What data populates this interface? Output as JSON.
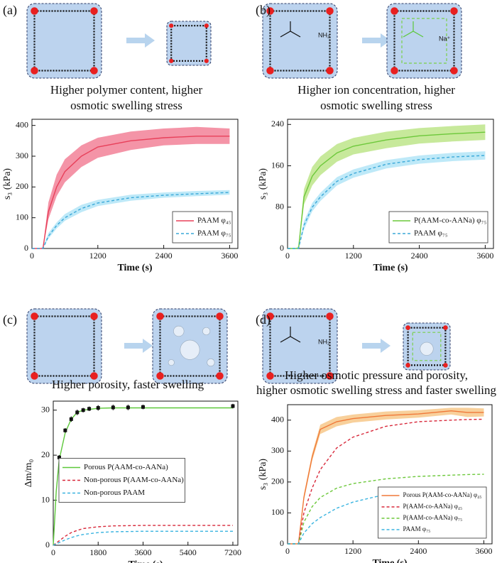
{
  "chart_data": [
    {
      "type": "line",
      "panel_label": "(a)",
      "caption": [
        "Higher polymer content, higher",
        "osmotic swelling stress"
      ],
      "xlabel": "Time (s)",
      "ylabel": "s₃ (kPa)",
      "xlim": [
        0,
        3750
      ],
      "ylim": [
        0,
        420
      ],
      "xticks": [
        0,
        1200,
        2400,
        3600
      ],
      "yticks": [
        0,
        100,
        200,
        300,
        400
      ],
      "legend": "lower right",
      "x": [
        0,
        150,
        200,
        300,
        450,
        600,
        900,
        1200,
        1800,
        2400,
        3000,
        3600
      ],
      "series": [
        {
          "name": "PAAM φ₄₅",
          "color": "#e8405a",
          "band_color": "#f0708a",
          "dashed": false,
          "values": [
            0,
            0,
            0,
            120,
            200,
            250,
            300,
            330,
            350,
            360,
            365,
            365
          ],
          "upper": [
            0,
            0,
            5,
            150,
            240,
            290,
            335,
            360,
            380,
            390,
            395,
            390
          ],
          "lower": [
            0,
            0,
            0,
            95,
            170,
            215,
            265,
            295,
            320,
            335,
            340,
            340
          ]
        },
        {
          "name": "PAAM φ₇₅",
          "color": "#3aa8d8",
          "band_color": "#a8e2f5",
          "dashed": true,
          "values": [
            0,
            0,
            0,
            40,
            75,
            100,
            130,
            148,
            165,
            173,
            178,
            182
          ],
          "upper": [
            0,
            0,
            5,
            50,
            85,
            112,
            142,
            158,
            175,
            182,
            187,
            190
          ],
          "lower": [
            0,
            0,
            0,
            32,
            65,
            90,
            118,
            138,
            155,
            165,
            170,
            175
          ]
        }
      ]
    },
    {
      "type": "line",
      "panel_label": "(b)",
      "caption": [
        "Higher ion concentration, higher",
        "osmotic swelling stress"
      ],
      "annotations": [
        "NH₂",
        "Na⁺"
      ],
      "xlabel": "Time (s)",
      "ylabel": "s₃ (kPa)",
      "xlim": [
        0,
        3750
      ],
      "ylim": [
        0,
        250
      ],
      "xticks": [
        0,
        1200,
        2400,
        3600
      ],
      "yticks": [
        0,
        80,
        160,
        240
      ],
      "legend": "lower right",
      "x": [
        0,
        150,
        200,
        300,
        450,
        600,
        900,
        1200,
        1800,
        2400,
        3000,
        3600
      ],
      "series": [
        {
          "name": "P(AAM-co-AANa) φ₇₅",
          "color": "#6cc83a",
          "band_color": "#b4e27a",
          "dashed": false,
          "values": [
            0,
            0,
            0,
            100,
            140,
            160,
            185,
            198,
            210,
            218,
            222,
            225
          ],
          "upper": [
            0,
            0,
            5,
            115,
            158,
            178,
            202,
            214,
            226,
            233,
            237,
            240
          ],
          "lower": [
            0,
            0,
            0,
            85,
            122,
            142,
            168,
            182,
            194,
            203,
            207,
            210
          ]
        },
        {
          "name": "PAAM φ₇₅",
          "color": "#3aa8d8",
          "band_color": "#a8e2f5",
          "dashed": true,
          "values": [
            0,
            0,
            0,
            45,
            80,
            100,
            130,
            145,
            163,
            172,
            177,
            180
          ],
          "upper": [
            0,
            0,
            4,
            53,
            88,
            108,
            138,
            153,
            171,
            180,
            185,
            188
          ],
          "lower": [
            0,
            0,
            0,
            37,
            72,
            92,
            122,
            137,
            155,
            164,
            169,
            172
          ]
        }
      ]
    },
    {
      "type": "line",
      "panel_label": "(c)",
      "caption": [
        "Higher porosity, faster swelling"
      ],
      "xlabel": "Time (s)",
      "ylabel": "Δm/m₀",
      "xlim": [
        0,
        7400
      ],
      "ylim": [
        0,
        32
      ],
      "xticks": [
        0,
        1800,
        3600,
        5400,
        7200
      ],
      "yticks": [
        0,
        10,
        20,
        30
      ],
      "legend": "center left",
      "x": [
        0,
        120,
        240,
        480,
        720,
        960,
        1200,
        1800,
        2400,
        3600,
        5400,
        7200
      ],
      "series": [
        {
          "name": "Porous P(AAM-co-AANa)",
          "color": "#5cc83a",
          "dashed": false,
          "values": [
            0,
            12,
            19,
            25,
            28,
            29.5,
            30,
            30.4,
            30.5,
            30.5,
            30.5,
            30.5
          ]
        },
        {
          "name": "Non-porous P(AAM-co-AANa)",
          "color": "#d8283a",
          "dashed": true,
          "values": [
            0,
            0.5,
            1,
            2,
            2.8,
            3.3,
            3.7,
            4.1,
            4.3,
            4.4,
            4.4,
            4.4
          ]
        },
        {
          "name": "Non-porous PAAM",
          "color": "#3ab4e0",
          "dashed": true,
          "values": [
            0,
            0.3,
            0.6,
            1.2,
            1.7,
            2.1,
            2.4,
            2.8,
            3,
            3.1,
            3.1,
            3.1
          ]
        }
      ],
      "points": {
        "color": "#111111",
        "x": [
          240,
          480,
          720,
          960,
          1200,
          1440,
          1800,
          2400,
          3000,
          3600,
          7200
        ],
        "values": [
          19.5,
          25.5,
          28,
          29.5,
          30,
          30.3,
          30.5,
          30.6,
          30.6,
          30.7,
          30.9
        ],
        "errors": [
          0.5,
          0.5,
          0.6,
          0.6,
          0.5,
          0.5,
          0.6,
          0.6,
          0.6,
          0.5,
          0.5
        ]
      }
    },
    {
      "type": "line",
      "panel_label": "(d)",
      "caption": [
        "Higher osmotic pressure and porosity,",
        "higher osmotic swelling stress and faster swelling"
      ],
      "annotations": [
        "NH₂"
      ],
      "xlabel": "Time (s)",
      "ylabel": "s₃ (kPa)",
      "xlim": [
        0,
        3750
      ],
      "ylim": [
        0,
        450
      ],
      "xticks": [
        0,
        1200,
        2400,
        3600
      ],
      "yticks": [
        0,
        100,
        200,
        300,
        400
      ],
      "legend": "lower right",
      "x": [
        0,
        150,
        200,
        300,
        450,
        600,
        900,
        1200,
        1800,
        2400,
        3000,
        3300,
        3600
      ],
      "series": [
        {
          "name": "Porous P(AAM-co-AANa) φ₄₅",
          "color": "#f07838",
          "band_color": "#f5c07a",
          "dashed": false,
          "values": [
            0,
            0,
            0,
            150,
            280,
            370,
            395,
            405,
            415,
            420,
            430,
            425,
            425
          ],
          "upper": [
            0,
            0,
            3,
            160,
            292,
            385,
            410,
            418,
            428,
            432,
            440,
            440,
            438
          ],
          "lower": [
            0,
            0,
            0,
            140,
            268,
            355,
            380,
            392,
            402,
            408,
            418,
            410,
            412
          ]
        },
        {
          "name": "P(AAM-co-AANa) φ₄₅",
          "color": "#d8283a",
          "dashed": true,
          "values": [
            0,
            0,
            0,
            100,
            180,
            240,
            310,
            345,
            380,
            395,
            400,
            402,
            403
          ]
        },
        {
          "name": "P(AAM-co-AANa) φ₇₅",
          "color": "#6cc83a",
          "dashed": true,
          "values": [
            0,
            0,
            0,
            70,
            120,
            150,
            180,
            195,
            210,
            218,
            222,
            224,
            225
          ]
        },
        {
          "name": "PAAM φ₇₅",
          "color": "#3ab4e0",
          "dashed": true,
          "values": [
            0,
            0,
            0,
            35,
            65,
            85,
            115,
            135,
            160,
            172,
            178,
            180,
            182
          ]
        }
      ]
    }
  ]
}
